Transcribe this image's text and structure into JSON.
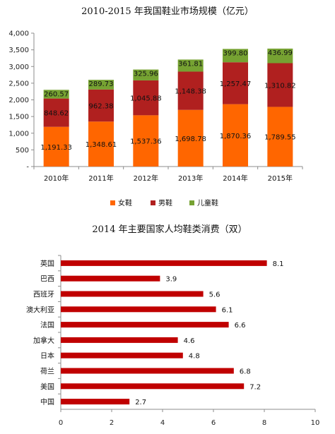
{
  "chart_data": [
    {
      "type": "bar",
      "stacked": true,
      "title": "2010-2015 年我国鞋业市场规模（亿元）",
      "categories": [
        "2010年",
        "2011年",
        "2012年",
        "2013年",
        "2014年",
        "2015年"
      ],
      "series": [
        {
          "name": "女鞋",
          "color": "#ff6600",
          "values": [
            1191.33,
            1348.61,
            1537.36,
            1698.78,
            1870.36,
            1789.55
          ],
          "labels": [
            "1,191.33",
            "1,348.61",
            "1,537.36",
            "1,698.78",
            "1,870.36",
            "1,789.55"
          ]
        },
        {
          "name": "男鞋",
          "color": "#b0201f",
          "values": [
            848.62,
            962.38,
            1045.88,
            1148.38,
            1257.47,
            1310.82
          ],
          "labels": [
            "848.62",
            "962.38",
            "1,045.88",
            "1,148.38",
            "1,257.47",
            "1,310.82"
          ]
        },
        {
          "name": "儿童鞋",
          "color": "#76a232",
          "values": [
            260.57,
            289.73,
            325.96,
            361.81,
            399.8,
            436.99
          ],
          "labels": [
            "260.57",
            "289.73",
            "325.96",
            "361.81",
            "399.80",
            "436.99"
          ]
        }
      ],
      "ylim": [
        0,
        4000
      ],
      "yticks": [
        "4,000",
        "3,500",
        "3,000",
        "2,500",
        "2,000",
        "1,500",
        "1,000",
        "500",
        "-"
      ],
      "legend_position": "bottom",
      "grid": false
    },
    {
      "type": "bar",
      "orientation": "horizontal",
      "title": "2014 年主要国家人均鞋类消费（双）",
      "categories": [
        "英国",
        "巴西",
        "西班牙",
        "澳大利亚",
        "法国",
        "加拿大",
        "日本",
        "荷兰",
        "美国",
        "中国"
      ],
      "values": [
        8.1,
        3.9,
        5.6,
        6.1,
        6.6,
        4.6,
        4.8,
        6.8,
        7.2,
        2.7
      ],
      "value_labels": [
        "8.1",
        "3.9",
        "5.6",
        "6.1",
        "6.6",
        "4.6",
        "4.8",
        "6.8",
        "7.2",
        "2.7"
      ],
      "color": "#c00000",
      "xlim": [
        0,
        10
      ],
      "xticks": [
        "0",
        "2",
        "4",
        "6",
        "8",
        "10"
      ],
      "grid": false
    }
  ]
}
